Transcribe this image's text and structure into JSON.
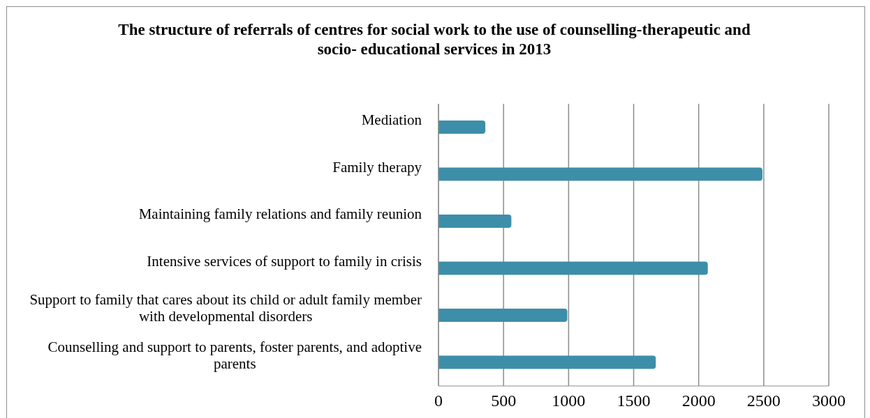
{
  "chart_data": {
    "type": "bar",
    "orientation": "horizontal",
    "title": "The structure of referrals of centres for social work to the use of counselling-therapeutic and socio- educational services in 2013",
    "categories": [
      "Mediation",
      "Family therapy",
      "Maintaining family relations and family reunion",
      "Intensive services of support to family in crisis",
      "Support to family that cares about its child or adult family member with developmental disorders",
      "Counselling and support to parents, foster parents, and adoptive parents"
    ],
    "values": [
      360,
      2490,
      560,
      2070,
      990,
      1670
    ],
    "color": "#3d8ea9",
    "xlim": [
      0,
      3000
    ],
    "xticks": [
      0,
      500,
      1000,
      1500,
      2000,
      2500,
      3000
    ],
    "grid": "x"
  }
}
